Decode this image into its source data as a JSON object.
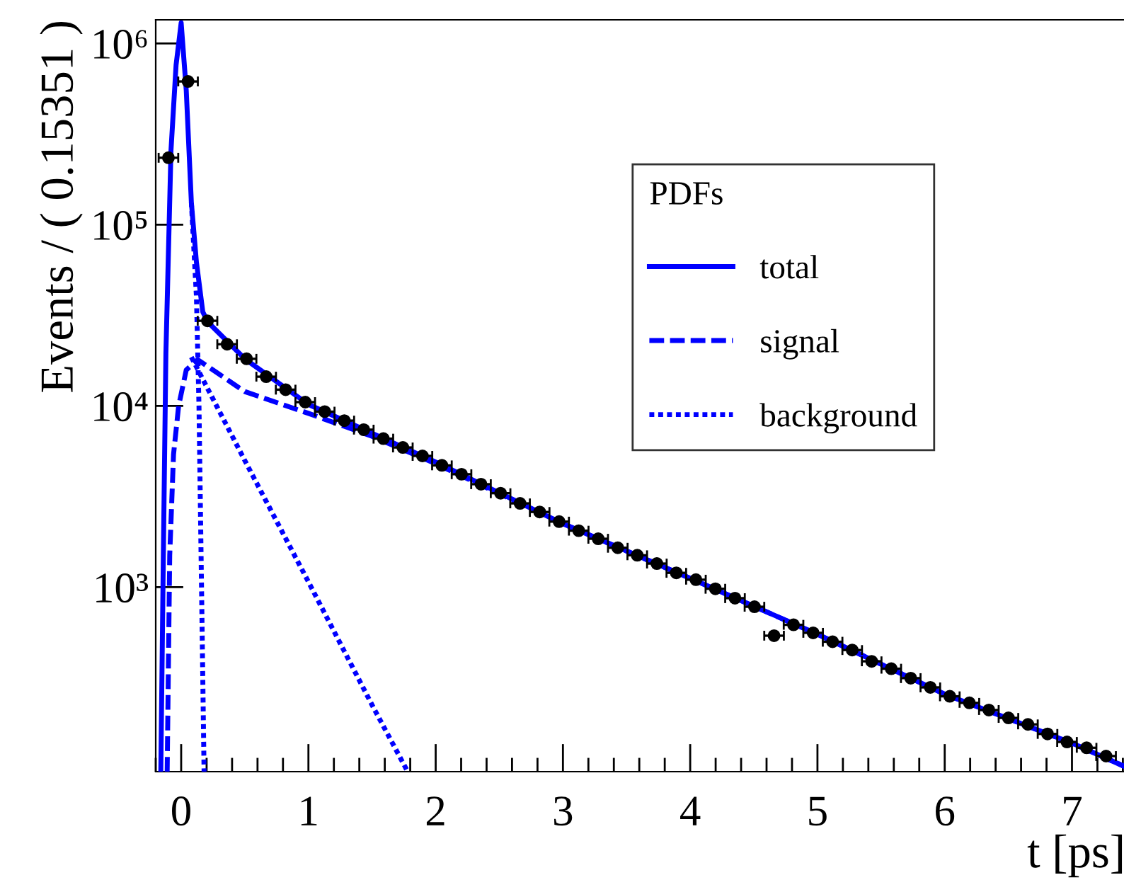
{
  "chart_data": {
    "type": "line",
    "xlabel": "t [ps]",
    "ylabel": "Events / ( 0.15351 )",
    "legend_title": "PDFs",
    "legend": "top right",
    "log": "y",
    "grid": false,
    "xlim": [
      -0.2,
      7.42
    ],
    "xticks": [
      0,
      1,
      2,
      3,
      4,
      5,
      6,
      7
    ],
    "ylim": [
      96,
      1350000
    ],
    "yticks": [
      {
        "value": 1000,
        "label": "10³"
      },
      {
        "value": 10000,
        "label": "10⁴"
      },
      {
        "value": 100000,
        "label": "10⁵"
      },
      {
        "value": 1000000,
        "label": "10⁶"
      }
    ],
    "series": [
      {
        "type": "scatter",
        "color": "#000000",
        "marker": "circle",
        "x": [
          -0.1,
          0.054,
          0.207,
          0.361,
          0.514,
          0.668,
          0.821,
          0.975,
          1.128,
          1.282,
          1.435,
          1.589,
          1.742,
          1.896,
          2.049,
          2.203,
          2.356,
          2.51,
          2.663,
          2.817,
          2.97,
          3.124,
          3.277,
          3.431,
          3.584,
          3.738,
          3.891,
          4.045,
          4.198,
          4.352,
          4.505,
          4.659,
          4.812,
          4.966,
          5.119,
          5.273,
          5.426,
          5.58,
          5.733,
          5.887,
          6.04,
          6.194,
          6.347,
          6.501,
          6.654,
          6.808,
          6.961,
          7.115,
          7.268
        ],
        "values": [
          234000,
          617000,
          29500,
          21900,
          18200,
          14500,
          12300,
          10500,
          9300,
          8300,
          7400,
          6600,
          5900,
          5300,
          4700,
          4200,
          3700,
          3300,
          2900,
          2600,
          2300,
          2050,
          1850,
          1650,
          1500,
          1350,
          1200,
          1100,
          980,
          870,
          780,
          540,
          620,
          560,
          500,
          450,
          390,
          355,
          315,
          280,
          250,
          230,
          210,
          190,
          175,
          155,
          140,
          130,
          117
        ],
        "xerrors": [
          0.077,
          0.077,
          0.077,
          0.077,
          0.077,
          0.077,
          0.077,
          0.077,
          0.077,
          0.077,
          0.077,
          0.077,
          0.077,
          0.077,
          0.077,
          0.077,
          0.077,
          0.077,
          0.077,
          0.077,
          0.077,
          0.077,
          0.077,
          0.077,
          0.077,
          0.077,
          0.077,
          0.077,
          0.077,
          0.077,
          0.077,
          0.077,
          0.077,
          0.077,
          0.077,
          0.077,
          0.077,
          0.077,
          0.077,
          0.077,
          0.077,
          0.077,
          0.077,
          0.077,
          0.077,
          0.077,
          0.077,
          0.077,
          0.077
        ]
      },
      {
        "name": "total",
        "color": "#0000ff",
        "line_style": "solid",
        "x": [
          -0.16,
          -0.14,
          -0.12,
          -0.08,
          -0.04,
          0.0,
          0.04,
          0.08,
          0.12,
          0.17,
          0.21,
          0.5,
          1,
          2,
          3,
          4,
          5,
          6,
          7,
          7.42
        ],
        "values": [
          96,
          1500,
          19500,
          257000,
          760000,
          1300000,
          550000,
          133000,
          62000,
          33000,
          29000,
          18200,
          10200,
          4900,
          2240,
          1120,
          550,
          257,
          138,
          102
        ]
      },
      {
        "name": "signal",
        "color": "#0000ff",
        "line_style": "dashed",
        "x": [
          -0.11,
          -0.09,
          -0.06,
          -0.02,
          0.04,
          0.13,
          0.5,
          1,
          1.5,
          2,
          3,
          4,
          5,
          6,
          7,
          7.42
        ],
        "values": [
          96,
          1500,
          5400,
          10000,
          15800,
          18000,
          12000,
          9100,
          6800,
          4800,
          2240,
          1120,
          550,
          257,
          138,
          102
        ]
      },
      {
        "name": "background",
        "color": "#0000ff",
        "line_style": "dotted",
        "x": [
          0.08,
          0.12,
          0.14,
          0.16,
          0.18
        ],
        "values": [
          133000,
          40000,
          10000,
          1000,
          96
        ]
      },
      {
        "color": "#0000ff",
        "line_style": "dotted",
        "x": [
          0.08,
          0.5,
          1.0,
          1.5,
          1.78
        ],
        "values": [
          18600,
          5000,
          1070,
          224,
          96
        ]
      }
    ]
  }
}
